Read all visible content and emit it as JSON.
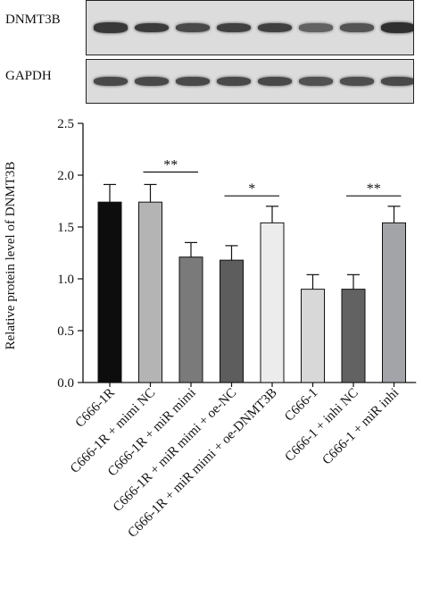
{
  "blots": {
    "top_label": "DNMT3B",
    "bottom_label": "GAPDH",
    "dnmt3b_intensity": [
      0.85,
      0.83,
      0.75,
      0.8,
      0.8,
      0.6,
      0.68,
      0.9
    ],
    "gapdh_intensity": [
      0.75,
      0.75,
      0.75,
      0.75,
      0.75,
      0.7,
      0.72,
      0.75
    ]
  },
  "chart_data": {
    "type": "bar",
    "title": "",
    "xlabel": "",
    "ylabel": "Relative protein level of DNMT3B",
    "ylim": [
      0,
      2.5
    ],
    "yticks": [
      "0.0",
      "0.5",
      "1.0",
      "1.5",
      "2.0",
      "2.5"
    ],
    "grid": false,
    "categories": [
      "C666-1R",
      "C666-1R + mimi NC",
      "C666-1R + miR mimi",
      "C666-1R + miR mimi + oe-NC",
      "C666-1R + miR mimi + oe-DNMT3B",
      "C666-1",
      "C666-1 + inhi NC",
      "C666-1 + miR inhi"
    ],
    "values": [
      1.74,
      1.74,
      1.21,
      1.18,
      1.54,
      0.9,
      0.9,
      1.54
    ],
    "errors": [
      0.17,
      0.17,
      0.14,
      0.14,
      0.16,
      0.14,
      0.14,
      0.16
    ],
    "colors": [
      "#0d0d0d",
      "#b4b4b4",
      "#7a7a7a",
      "#5d5d5d",
      "#ececec",
      "#d8d8d8",
      "#626262",
      "#a2a4a8"
    ],
    "significance": [
      {
        "from": 1,
        "to": 2,
        "label": "**",
        "y": 2.03
      },
      {
        "from": 3,
        "to": 4,
        "label": "*",
        "y": 1.8
      },
      {
        "from": 6,
        "to": 7,
        "label": "**",
        "y": 1.8
      }
    ]
  }
}
